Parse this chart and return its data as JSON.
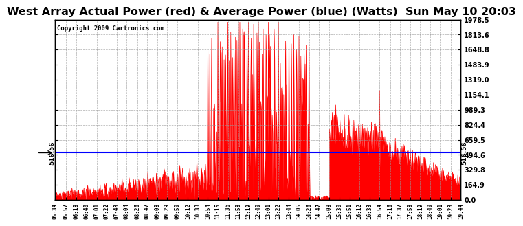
{
  "title": "West Array Actual Power (red) & Average Power (blue) (Watts)  Sun May 10 20:03",
  "copyright": "Copyright 2009 Cartronics.com",
  "avg_power": 516.56,
  "y_max": 1978.5,
  "y_min": 0.0,
  "ytick_values": [
    0.0,
    164.9,
    329.8,
    494.6,
    659.5,
    824.4,
    989.3,
    1154.1,
    1319.0,
    1483.9,
    1648.8,
    1813.6,
    1978.5
  ],
  "background_color": "#ffffff",
  "fill_color": "#ff0000",
  "line_color": "#0000ff",
  "grid_color": "#999999",
  "title_fontsize": 11.5,
  "copyright_fontsize": 6.5,
  "avg_label": "516.56",
  "tick_labels": [
    "05:34",
    "05:57",
    "06:18",
    "06:40",
    "07:01",
    "07:22",
    "07:43",
    "08:04",
    "08:26",
    "08:47",
    "09:08",
    "09:29",
    "09:50",
    "10:12",
    "10:33",
    "10:54",
    "11:15",
    "11:36",
    "11:58",
    "12:19",
    "12:40",
    "13:01",
    "13:22",
    "13:44",
    "14:05",
    "14:26",
    "14:47",
    "15:08",
    "15:30",
    "15:51",
    "16:12",
    "16:33",
    "16:54",
    "17:16",
    "17:37",
    "17:58",
    "18:19",
    "18:40",
    "19:01",
    "19:23",
    "19:44"
  ]
}
